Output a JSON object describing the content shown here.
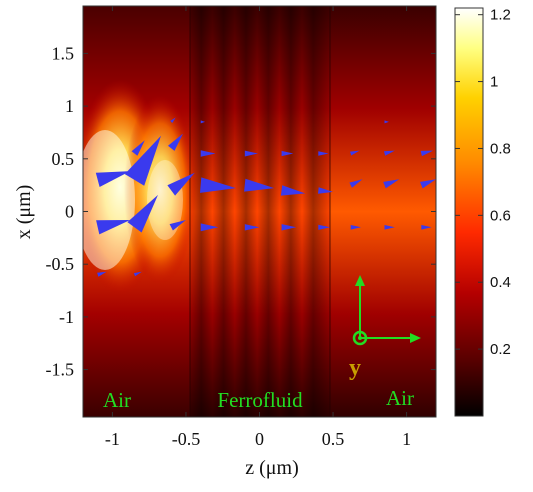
{
  "chart_data": {
    "type": "heatmap",
    "title": "",
    "xlabel": "z (μm)",
    "ylabel": "x (μm)",
    "xlim": [
      -1.2,
      1.2
    ],
    "ylim": [
      -1.95,
      1.95
    ],
    "x_ticks": [
      -1,
      -0.5,
      0,
      0.5,
      1
    ],
    "x_tick_labels": [
      "-1",
      "-0.5",
      "0",
      "0.5",
      "1"
    ],
    "y_ticks": [
      -1.5,
      -1,
      -0.5,
      0,
      0.5,
      1,
      1.5
    ],
    "y_tick_labels": [
      "-1.5",
      "-1",
      "-0.5",
      "0",
      "0.5",
      "1",
      "1.5"
    ],
    "colorbar": {
      "range": [
        0,
        1.22
      ],
      "ticks": [
        0.2,
        0.4,
        0.6,
        0.8,
        1,
        1.2
      ],
      "tick_labels": [
        "0.2",
        "0.4",
        "0.6",
        "0.8",
        "1",
        "1.2"
      ],
      "colormap": [
        "#000000",
        "#5a0000",
        "#b40000",
        "#ff2a00",
        "#ff8a00",
        "#ffd100",
        "#ffff80",
        "#ffffff"
      ]
    },
    "regions": [
      {
        "label": "Air",
        "z_range": [
          -1.2,
          -0.5
        ],
        "color": "#22dd22"
      },
      {
        "label": "Ferrofluid",
        "z_range": [
          -0.5,
          0.5
        ],
        "color": "#22dd22"
      },
      {
        "label": "Air",
        "z_range": [
          0.5,
          1.2
        ],
        "color": "#22dd22"
      }
    ],
    "interfaces_z": [
      -0.5,
      0.5
    ],
    "arrow_color": "#3a3aee",
    "arrows": [
      {
        "z": -1.1,
        "x": 0.3,
        "dz": 0.22,
        "dx": 0.06
      },
      {
        "z": -0.85,
        "x": 0.3,
        "dz": 0.18,
        "dx": 0.3
      },
      {
        "z": -0.6,
        "x": 0.2,
        "dz": 0.16,
        "dx": 0.12
      },
      {
        "z": -0.85,
        "x": 0.55,
        "dz": 0.07,
        "dx": 0.09
      },
      {
        "z": -0.6,
        "x": 0.6,
        "dz": 0.08,
        "dx": 0.1
      },
      {
        "z": -1.1,
        "x": -0.15,
        "dz": 0.22,
        "dx": 0.05
      },
      {
        "z": -0.85,
        "x": -0.15,
        "dz": 0.16,
        "dx": 0.22
      },
      {
        "z": -0.6,
        "x": -0.15,
        "dz": 0.1,
        "dx": 0.05
      },
      {
        "z": -1.1,
        "x": -0.6,
        "dz": 0.06,
        "dx": 0.02
      },
      {
        "z": -0.85,
        "x": -0.6,
        "dz": 0.05,
        "dx": 0.02
      },
      {
        "z": -0.4,
        "x": 0.25,
        "dz": 0.24,
        "dx": -0.02
      },
      {
        "z": -0.1,
        "x": 0.25,
        "dz": 0.2,
        "dx": -0.02
      },
      {
        "z": 0.15,
        "x": 0.2,
        "dz": 0.16,
        "dx": -0.02
      },
      {
        "z": 0.4,
        "x": 0.2,
        "dz": 0.1,
        "dx": -0.01
      },
      {
        "z": -0.4,
        "x": 0.55,
        "dz": 0.1,
        "dx": 0.0
      },
      {
        "z": -0.1,
        "x": 0.55,
        "dz": 0.09,
        "dx": 0.0
      },
      {
        "z": 0.15,
        "x": 0.55,
        "dz": 0.08,
        "dx": 0.0
      },
      {
        "z": 0.4,
        "x": 0.55,
        "dz": 0.07,
        "dx": 0.0
      },
      {
        "z": -0.4,
        "x": -0.15,
        "dz": 0.12,
        "dx": 0.0
      },
      {
        "z": -0.1,
        "x": -0.15,
        "dz": 0.1,
        "dx": 0.0
      },
      {
        "z": 0.15,
        "x": -0.15,
        "dz": 0.1,
        "dx": 0.0
      },
      {
        "z": 0.4,
        "x": -0.15,
        "dz": 0.08,
        "dx": 0.0
      },
      {
        "z": 0.62,
        "x": 0.25,
        "dz": 0.08,
        "dx": 0.04
      },
      {
        "z": 0.85,
        "x": 0.25,
        "dz": 0.1,
        "dx": 0.04
      },
      {
        "z": 1.1,
        "x": 0.25,
        "dz": 0.1,
        "dx": 0.04
      },
      {
        "z": 0.62,
        "x": 0.55,
        "dz": 0.06,
        "dx": 0.02
      },
      {
        "z": 0.85,
        "x": 0.55,
        "dz": 0.07,
        "dx": 0.02
      },
      {
        "z": 1.1,
        "x": 0.55,
        "dz": 0.08,
        "dx": 0.02
      },
      {
        "z": 0.62,
        "x": -0.15,
        "dz": 0.07,
        "dx": 0.0
      },
      {
        "z": 0.85,
        "x": -0.15,
        "dz": 0.07,
        "dx": 0.0
      },
      {
        "z": 1.1,
        "x": -0.15,
        "dz": 0.07,
        "dx": 0.0
      },
      {
        "z": -0.6,
        "x": 0.85,
        "dz": 0.03,
        "dx": 0.03
      },
      {
        "z": -0.4,
        "x": 0.85,
        "dz": 0.03,
        "dx": 0.0
      },
      {
        "z": 0.85,
        "x": 0.85,
        "dz": 0.03,
        "dx": 0.0
      }
    ],
    "axes_indicator": {
      "labels": [
        "y"
      ],
      "color": "#22dd22",
      "label_color": "#c8a000"
    }
  }
}
